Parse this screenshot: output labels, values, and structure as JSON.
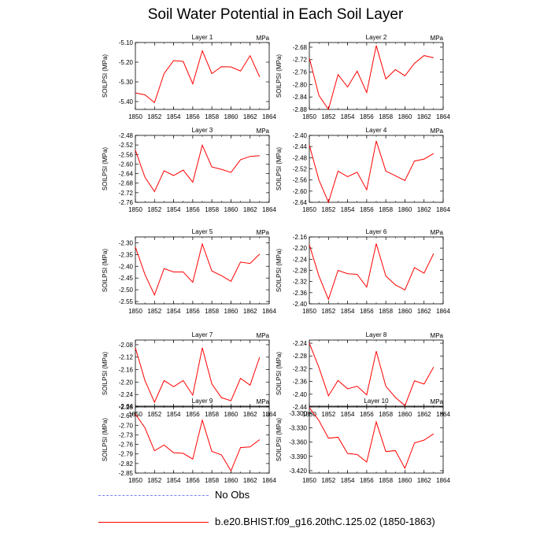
{
  "title": "Soil Water Potential in Each Soil Layer",
  "colors": {
    "model": "#ff0000",
    "obs": "#8080ff"
  },
  "legend": [
    {
      "label": "No Obs",
      "style": "dashed",
      "color": "#8080ff"
    },
    {
      "label": "b.e20.BHIST.f09_g16.20thC.125.02 (1850-1863)",
      "style": "solid",
      "color": "#ff0000"
    }
  ],
  "chart_data": [
    {
      "type": "line",
      "title": "Layer 1",
      "units": "MPa",
      "ylabel": "SOILPSI  (MPa)",
      "x": [
        1850,
        1851,
        1852,
        1853,
        1854,
        1855,
        1856,
        1857,
        1858,
        1859,
        1860,
        1861,
        1862,
        1863
      ],
      "values": [
        -5.356,
        -5.366,
        -5.405,
        -5.258,
        -5.192,
        -5.196,
        -5.31,
        -5.142,
        -5.258,
        -5.223,
        -5.224,
        -5.245,
        -5.167,
        -5.275
      ],
      "xlim": [
        1850,
        1864
      ],
      "xticks": [
        1850,
        1852,
        1854,
        1856,
        1858,
        1860,
        1862,
        1864
      ],
      "ylim": [
        -5.44,
        -5.1
      ],
      "yticks": [
        -5.4,
        -5.3,
        -5.2,
        -5.1
      ],
      "ytick_labels": [
        "-5.40",
        "-5.30",
        "-5.20",
        "-5.10"
      ]
    },
    {
      "type": "line",
      "title": "Layer 2",
      "units": "MPa",
      "ylabel": "SOILPSI  (MPa)",
      "x": [
        1850,
        1851,
        1852,
        1853,
        1854,
        1855,
        1856,
        1857,
        1858,
        1859,
        1860,
        1861,
        1862,
        1863
      ],
      "values": [
        -2.715,
        -2.835,
        -2.88,
        -2.768,
        -2.808,
        -2.757,
        -2.826,
        -2.675,
        -2.782,
        -2.752,
        -2.772,
        -2.732,
        -2.707,
        -2.714
      ],
      "xlim": [
        1850,
        1864
      ],
      "xticks": [
        1850,
        1852,
        1854,
        1856,
        1858,
        1860,
        1862,
        1864
      ],
      "ylim": [
        -2.88,
        -2.665
      ],
      "yticks": [
        -2.88,
        -2.84,
        -2.8,
        -2.76,
        -2.72,
        -2.68
      ],
      "ytick_labels": [
        "-2.88",
        "-2.84",
        "-2.80",
        "-2.76",
        "-2.72",
        "-2.68"
      ]
    },
    {
      "type": "line",
      "title": "Layer 3",
      "units": "MPa",
      "ylabel": "SOILPSI  (MPa)",
      "x": [
        1850,
        1851,
        1852,
        1853,
        1854,
        1855,
        1856,
        1857,
        1858,
        1859,
        1860,
        1861,
        1862,
        1863
      ],
      "values": [
        -2.542,
        -2.655,
        -2.715,
        -2.628,
        -2.648,
        -2.625,
        -2.676,
        -2.521,
        -2.612,
        -2.622,
        -2.635,
        -2.582,
        -2.568,
        -2.565
      ],
      "xlim": [
        1850,
        1864
      ],
      "xticks": [
        1850,
        1852,
        1854,
        1856,
        1858,
        1860,
        1862,
        1864
      ],
      "ylim": [
        -2.76,
        -2.48
      ],
      "yticks": [
        -2.76,
        -2.72,
        -2.68,
        -2.64,
        -2.6,
        -2.56,
        -2.52,
        -2.48
      ],
      "ytick_labels": [
        "-2.76",
        "-2.72",
        "-2.68",
        "-2.64",
        "-2.60",
        "-2.56",
        "-2.52",
        "-2.48"
      ]
    },
    {
      "type": "line",
      "title": "Layer 4",
      "units": "MPa",
      "ylabel": "SOILPSI  (MPa)",
      "x": [
        1850,
        1851,
        1852,
        1853,
        1854,
        1855,
        1856,
        1857,
        1858,
        1859,
        1860,
        1861,
        1862,
        1863
      ],
      "values": [
        -2.435,
        -2.56,
        -2.64,
        -2.528,
        -2.548,
        -2.532,
        -2.595,
        -2.42,
        -2.528,
        -2.545,
        -2.562,
        -2.492,
        -2.485,
        -2.465
      ],
      "xlim": [
        1850,
        1864
      ],
      "xticks": [
        1850,
        1852,
        1854,
        1856,
        1858,
        1860,
        1862,
        1864
      ],
      "ylim": [
        -2.64,
        -2.4
      ],
      "yticks": [
        -2.64,
        -2.6,
        -2.56,
        -2.52,
        -2.48,
        -2.44,
        -2.4
      ],
      "ytick_labels": [
        "-2.64",
        "-2.60",
        "-2.56",
        "-2.52",
        "-2.48",
        "-2.44",
        "-2.40"
      ]
    },
    {
      "type": "line",
      "title": "Layer 5",
      "units": "MPa",
      "ylabel": "SOILPSI  (MPa)",
      "x": [
        1850,
        1851,
        1852,
        1853,
        1854,
        1855,
        1856,
        1857,
        1858,
        1859,
        1860,
        1861,
        1862,
        1863
      ],
      "values": [
        -2.318,
        -2.435,
        -2.522,
        -2.41,
        -2.424,
        -2.424,
        -2.468,
        -2.305,
        -2.42,
        -2.44,
        -2.464,
        -2.382,
        -2.388,
        -2.348
      ],
      "xlim": [
        1850,
        1864
      ],
      "xticks": [
        1850,
        1852,
        1854,
        1856,
        1858,
        1860,
        1862,
        1864
      ],
      "ylim": [
        -2.56,
        -2.275
      ],
      "yticks": [
        -2.55,
        -2.5,
        -2.45,
        -2.4,
        -2.35,
        -2.3
      ],
      "ytick_labels": [
        "-2.55",
        "-2.50",
        "-2.45",
        "-2.40",
        "-2.35",
        "-2.30"
      ]
    },
    {
      "type": "line",
      "title": "Layer 6",
      "units": "MPa",
      "ylabel": "SOILPSI  (MPa)",
      "x": [
        1850,
        1851,
        1852,
        1853,
        1854,
        1855,
        1856,
        1857,
        1858,
        1859,
        1860,
        1861,
        1862,
        1863
      ],
      "values": [
        -2.188,
        -2.3,
        -2.384,
        -2.28,
        -2.292,
        -2.294,
        -2.34,
        -2.184,
        -2.3,
        -2.332,
        -2.35,
        -2.27,
        -2.29,
        -2.22
      ],
      "xlim": [
        1850,
        1864
      ],
      "xticks": [
        1850,
        1852,
        1854,
        1856,
        1858,
        1860,
        1862,
        1864
      ],
      "ylim": [
        -2.4,
        -2.16
      ],
      "yticks": [
        -2.4,
        -2.36,
        -2.32,
        -2.28,
        -2.24,
        -2.2,
        -2.16
      ],
      "ytick_labels": [
        "-2.40",
        "-2.36",
        "-2.32",
        "-2.28",
        "-2.24",
        "-2.20",
        "-2.16"
      ]
    },
    {
      "type": "line",
      "title": "Layer 7",
      "units": "MPa",
      "ylabel": "SOILPSI  (MPa)",
      "x": [
        1850,
        1851,
        1852,
        1853,
        1854,
        1855,
        1856,
        1857,
        1858,
        1859,
        1860,
        1861,
        1862,
        1863
      ],
      "values": [
        -2.09,
        -2.195,
        -2.265,
        -2.195,
        -2.215,
        -2.195,
        -2.242,
        -2.09,
        -2.206,
        -2.25,
        -2.26,
        -2.188,
        -2.21,
        -2.12
      ],
      "xlim": [
        1850,
        1864
      ],
      "xticks": [
        1850,
        1852,
        1854,
        1856,
        1858,
        1860,
        1862,
        1864
      ],
      "ylim": [
        -2.28,
        -2.065
      ],
      "yticks": [
        -2.28,
        -2.24,
        -2.2,
        -2.16,
        -2.12,
        -2.08
      ],
      "ytick_labels": [
        "-2.28",
        "-2.24",
        "-2.20",
        "-2.16",
        "-2.12",
        "-2.08"
      ]
    },
    {
      "type": "line",
      "title": "Layer 8",
      "units": "MPa",
      "ylabel": "SOILPSI  (MPa)",
      "x": [
        1850,
        1851,
        1852,
        1853,
        1854,
        1855,
        1856,
        1857,
        1858,
        1859,
        1860,
        1861,
        1862,
        1863
      ],
      "values": [
        -2.24,
        -2.316,
        -2.405,
        -2.357,
        -2.383,
        -2.375,
        -2.402,
        -2.265,
        -2.375,
        -2.41,
        -2.436,
        -2.358,
        -2.368,
        -2.315
      ],
      "xlim": [
        1850,
        1864
      ],
      "xticks": [
        1850,
        1852,
        1854,
        1856,
        1858,
        1860,
        1862,
        1864
      ],
      "ylim": [
        -2.44,
        -2.23
      ],
      "yticks": [
        -2.44,
        -2.4,
        -2.36,
        -2.32,
        -2.28,
        -2.24
      ],
      "ytick_labels": [
        "-2.44",
        "-2.40",
        "-2.36",
        "-2.32",
        "-2.28",
        "-2.24"
      ]
    },
    {
      "type": "line",
      "title": "Layer 9",
      "units": "MPa",
      "ylabel": "SOILPSI  (MPa)",
      "x": [
        1850,
        1851,
        1852,
        1853,
        1854,
        1855,
        1856,
        1857,
        1858,
        1859,
        1860,
        1861,
        1862,
        1863
      ],
      "values": [
        -2.665,
        -2.708,
        -2.78,
        -2.762,
        -2.786,
        -2.788,
        -2.806,
        -2.684,
        -2.782,
        -2.793,
        -2.843,
        -2.77,
        -2.768,
        -2.745
      ],
      "xlim": [
        1850,
        1864
      ],
      "xticks": [
        1850,
        1852,
        1854,
        1856,
        1858,
        1860,
        1862,
        1864
      ],
      "ylim": [
        -2.85,
        -2.64
      ],
      "yticks": [
        -2.85,
        -2.82,
        -2.79,
        -2.76,
        -2.73,
        -2.7,
        -2.67,
        -2.64
      ],
      "ytick_labels": [
        "-2.85",
        "-2.82",
        "-2.79",
        "-2.76",
        "-2.73",
        "-2.70",
        "-2.67",
        "-2.64"
      ]
    },
    {
      "type": "line",
      "title": "Layer 10",
      "units": "MPa",
      "ylabel": "SOILPSI  (MPa)",
      "x": [
        1850,
        1851,
        1852,
        1853,
        1854,
        1855,
        1856,
        1857,
        1858,
        1859,
        1860,
        1861,
        1862,
        1863
      ],
      "values": [
        -3.288,
        -3.315,
        -3.352,
        -3.35,
        -3.384,
        -3.386,
        -3.402,
        -3.318,
        -3.38,
        -3.378,
        -3.415,
        -3.362,
        -3.356,
        -3.343
      ],
      "xlim": [
        1850,
        1864
      ],
      "xticks": [
        1850,
        1852,
        1854,
        1856,
        1858,
        1860,
        1862,
        1864
      ],
      "ylim": [
        -3.425,
        -3.285
      ],
      "yticks": [
        -3.42,
        -3.39,
        -3.36,
        -3.33,
        -3.3
      ],
      "ytick_labels": [
        "-3.420",
        "-3.390",
        "-3.360",
        "-3.330",
        "-3.300"
      ]
    }
  ]
}
